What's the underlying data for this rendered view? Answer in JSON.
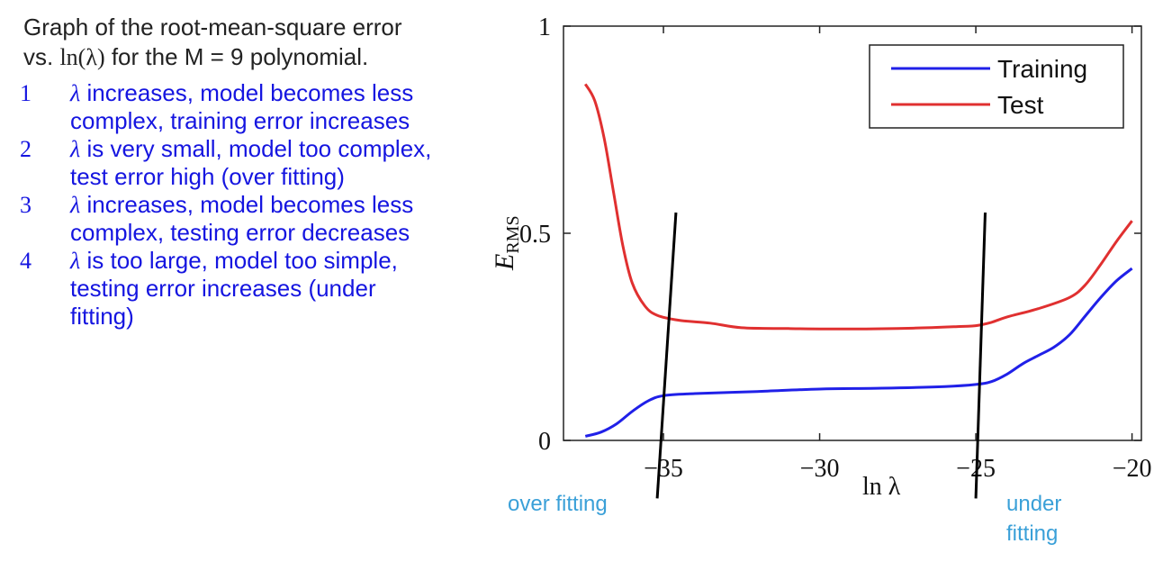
{
  "intro": {
    "line1": "Graph of the root-mean-square error",
    "line2_prefix": "vs. ",
    "line2_math": "ln(λ)",
    "line2_suffix": " for the M = 9 polynomial."
  },
  "points": [
    {
      "num": "1",
      "lambda": "λ",
      "text": " increases, model becomes less complex, training error increases"
    },
    {
      "num": "2",
      "lambda": "λ",
      "text": " is very small, model too complex, test error high (over fitting)"
    },
    {
      "num": "3",
      "lambda": "λ",
      "text": " increases, model becomes less complex, testing error decreases"
    },
    {
      "num": "4",
      "lambda": "λ",
      "text": " is too large, model too simple, testing error increases (under fitting)"
    }
  ],
  "annotations": {
    "left": "over fitting",
    "right_line1": "under",
    "right_line2": "fitting"
  },
  "chart_data": {
    "type": "line",
    "xlabel": "ln λ",
    "ylabel_main": "E",
    "ylabel_sub": "RMS",
    "xlim": [
      -38.2,
      -19.7
    ],
    "ylim": [
      0,
      1
    ],
    "x_ticks": [
      -35,
      -30,
      -25,
      -20
    ],
    "x_tick_labels": [
      "−35",
      "−30",
      "−25",
      "−20"
    ],
    "y_ticks": [
      0,
      0.5,
      1
    ],
    "y_tick_labels": [
      "0",
      "0.5",
      "1"
    ],
    "grid": false,
    "legend_position": "top-right",
    "series": [
      {
        "name": "Training",
        "color": "#2020e8",
        "points": [
          [
            -37.5,
            0.01
          ],
          [
            -37,
            0.02
          ],
          [
            -36.5,
            0.04
          ],
          [
            -36,
            0.07
          ],
          [
            -35.5,
            0.095
          ],
          [
            -35,
            0.108
          ],
          [
            -34,
            0.113
          ],
          [
            -32,
            0.118
          ],
          [
            -30,
            0.124
          ],
          [
            -28,
            0.126
          ],
          [
            -26,
            0.13
          ],
          [
            -25,
            0.135
          ],
          [
            -24.5,
            0.142
          ],
          [
            -24,
            0.16
          ],
          [
            -23.5,
            0.185
          ],
          [
            -23,
            0.205
          ],
          [
            -22.5,
            0.225
          ],
          [
            -22,
            0.255
          ],
          [
            -21.5,
            0.3
          ],
          [
            -21,
            0.345
          ],
          [
            -20.5,
            0.385
          ],
          [
            -20,
            0.415
          ]
        ]
      },
      {
        "name": "Test",
        "color": "#e03030",
        "points": [
          [
            -37.5,
            0.86
          ],
          [
            -37.2,
            0.82
          ],
          [
            -36.9,
            0.73
          ],
          [
            -36.6,
            0.6
          ],
          [
            -36.3,
            0.47
          ],
          [
            -36,
            0.38
          ],
          [
            -35.6,
            0.325
          ],
          [
            -35.2,
            0.302
          ],
          [
            -34.5,
            0.29
          ],
          [
            -33.5,
            0.283
          ],
          [
            -32.5,
            0.272
          ],
          [
            -31,
            0.27
          ],
          [
            -29,
            0.269
          ],
          [
            -27,
            0.271
          ],
          [
            -25.5,
            0.275
          ],
          [
            -25,
            0.277
          ],
          [
            -24.5,
            0.285
          ],
          [
            -24,
            0.298
          ],
          [
            -23,
            0.318
          ],
          [
            -22,
            0.345
          ],
          [
            -21.5,
            0.375
          ],
          [
            -21,
            0.425
          ],
          [
            -20.5,
            0.48
          ],
          [
            -20,
            0.53
          ]
        ]
      }
    ],
    "marker_lines": [
      {
        "from": [
          -34.6,
          0.55
        ],
        "to": [
          -35.2,
          -0.14
        ]
      },
      {
        "from": [
          -24.7,
          0.55
        ],
        "to": [
          -25.0,
          -0.14
        ]
      }
    ]
  }
}
